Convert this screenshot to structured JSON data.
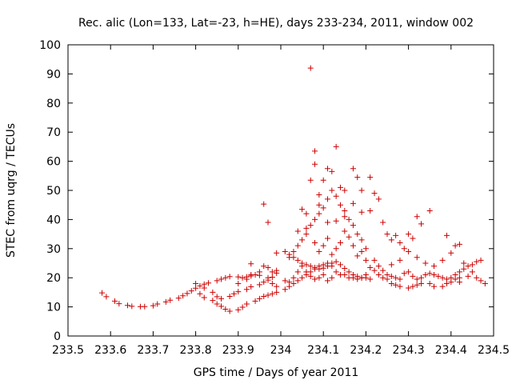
{
  "chart_data": {
    "type": "scatter",
    "title": "Rec. alic (Lon=133, Lat=-23, h=HE), days 233-234, 2011, window 002",
    "xlabel": "GPS time / Days of year 2011",
    "ylabel": "STEC from uqrg / TECUs",
    "xlim": [
      233.5,
      234.5
    ],
    "ylim": [
      0,
      100
    ],
    "x_ticks": [
      "233.5",
      "233.6",
      "233.7",
      "233.8",
      "233.9",
      "234",
      "234.1",
      "234.2",
      "234.3",
      "234.4",
      "234.5"
    ],
    "y_ticks": [
      "0",
      "10",
      "20",
      "30",
      "40",
      "50",
      "60",
      "70",
      "80",
      "90",
      "100"
    ],
    "grid": false,
    "legend": "none",
    "marker": "+",
    "color": "#cc0000",
    "points": [
      [
        233.58,
        14.8
      ],
      [
        233.59,
        13.5
      ],
      [
        233.61,
        12.0
      ],
      [
        233.62,
        11.1
      ],
      [
        233.64,
        10.5
      ],
      [
        233.65,
        10.2
      ],
      [
        233.67,
        10.1
      ],
      [
        233.68,
        10.1
      ],
      [
        233.7,
        10.4
      ],
      [
        233.71,
        11.0
      ],
      [
        233.73,
        11.7
      ],
      [
        233.74,
        12.3
      ],
      [
        233.76,
        13.0
      ],
      [
        233.77,
        13.8
      ],
      [
        233.78,
        14.6
      ],
      [
        233.79,
        15.5
      ],
      [
        233.8,
        16.4
      ],
      [
        233.81,
        17.2
      ],
      [
        233.82,
        17.8
      ],
      [
        233.83,
        18.2
      ],
      [
        233.85,
        19.0
      ],
      [
        233.86,
        19.5
      ],
      [
        233.87,
        20.0
      ],
      [
        233.88,
        20.4
      ],
      [
        233.9,
        20.3
      ],
      [
        233.91,
        20.0
      ],
      [
        233.92,
        20.3
      ],
      [
        233.93,
        20.6
      ],
      [
        233.94,
        21.0
      ],
      [
        233.95,
        20.8
      ],
      [
        233.97,
        20.0
      ],
      [
        233.98,
        20.2
      ],
      [
        233.99,
        21.6
      ],
      [
        233.81,
        14.5
      ],
      [
        233.82,
        13.2
      ],
      [
        233.84,
        12.2
      ],
      [
        233.85,
        11.0
      ],
      [
        233.86,
        10.2
      ],
      [
        233.87,
        9.2
      ],
      [
        233.88,
        8.5
      ],
      [
        233.9,
        9.0
      ],
      [
        233.91,
        9.9
      ],
      [
        233.92,
        11.0
      ],
      [
        233.94,
        12.0
      ],
      [
        233.95,
        12.8
      ],
      [
        233.96,
        13.6
      ],
      [
        233.97,
        14.0
      ],
      [
        233.98,
        14.5
      ],
      [
        233.8,
        18.0
      ],
      [
        233.82,
        16.5
      ],
      [
        233.84,
        15.0
      ],
      [
        233.85,
        13.5
      ],
      [
        233.86,
        12.8
      ],
      [
        233.88,
        13.6
      ],
      [
        233.89,
        14.5
      ],
      [
        233.9,
        15.2
      ],
      [
        233.92,
        16.0
      ],
      [
        233.93,
        16.9
      ],
      [
        233.95,
        17.6
      ],
      [
        233.96,
        18.5
      ],
      [
        233.97,
        19.2
      ],
      [
        233.98,
        18.0
      ],
      [
        233.99,
        17.0
      ],
      [
        233.9,
        18.0
      ],
      [
        233.92,
        19.5
      ],
      [
        233.93,
        21.0
      ],
      [
        233.95,
        22.0
      ],
      [
        233.96,
        24.0
      ],
      [
        233.97,
        23.5
      ],
      [
        233.98,
        22.0
      ],
      [
        233.93,
        24.8
      ],
      [
        233.96,
        45.3
      ],
      [
        233.97,
        39.0
      ],
      [
        233.99,
        28.5
      ],
      [
        233.99,
        22.5
      ],
      [
        233.99,
        15.0
      ],
      [
        234.01,
        29.0
      ],
      [
        234.02,
        28.0
      ],
      [
        234.03,
        27.0
      ],
      [
        234.04,
        26.0
      ],
      [
        234.05,
        25.0
      ],
      [
        234.06,
        24.5
      ],
      [
        234.07,
        24.0
      ],
      [
        234.08,
        23.5
      ],
      [
        234.09,
        23.0
      ],
      [
        234.1,
        23.3
      ],
      [
        234.11,
        24.0
      ],
      [
        234.12,
        25.0
      ],
      [
        234.13,
        25.5
      ],
      [
        234.14,
        24.5
      ],
      [
        234.15,
        23.2
      ],
      [
        234.16,
        22.0
      ],
      [
        234.17,
        21.0
      ],
      [
        234.18,
        20.5
      ],
      [
        234.19,
        20.0
      ],
      [
        234.2,
        20.0
      ],
      [
        234.21,
        19.5
      ],
      [
        234.01,
        16.0
      ],
      [
        234.02,
        17.0
      ],
      [
        234.03,
        18.0
      ],
      [
        234.04,
        19.0
      ],
      [
        234.05,
        20.0
      ],
      [
        234.06,
        21.0
      ],
      [
        234.07,
        22.0
      ],
      [
        234.08,
        23.0
      ],
      [
        234.09,
        24.0
      ],
      [
        234.1,
        24.5
      ],
      [
        234.11,
        25.0
      ],
      [
        234.12,
        24.0
      ],
      [
        234.13,
        22.0
      ],
      [
        234.14,
        21.0
      ],
      [
        234.15,
        21.0
      ],
      [
        234.16,
        20.0
      ],
      [
        234.17,
        20.0
      ],
      [
        234.18,
        19.5
      ],
      [
        234.19,
        20.0
      ],
      [
        234.2,
        21.0
      ],
      [
        234.01,
        19.0
      ],
      [
        234.02,
        18.5
      ],
      [
        234.03,
        20.0
      ],
      [
        234.04,
        22.0
      ],
      [
        234.05,
        24.0
      ],
      [
        234.06,
        22.0
      ],
      [
        234.07,
        20.5
      ],
      [
        234.08,
        19.5
      ],
      [
        234.09,
        20.0
      ],
      [
        234.1,
        21.0
      ],
      [
        234.11,
        19.0
      ],
      [
        234.12,
        20.0
      ],
      [
        234.02,
        27.0
      ],
      [
        234.03,
        29.0
      ],
      [
        234.04,
        31.0
      ],
      [
        234.05,
        33.0
      ],
      [
        234.06,
        35.0
      ],
      [
        234.07,
        38.0
      ],
      [
        234.08,
        40.0
      ],
      [
        234.09,
        42.0
      ],
      [
        234.1,
        44.0
      ],
      [
        234.11,
        47.0
      ],
      [
        234.12,
        50.0
      ],
      [
        234.13,
        48.0
      ],
      [
        234.14,
        45.0
      ],
      [
        234.15,
        43.0
      ],
      [
        234.16,
        40.0
      ],
      [
        234.17,
        38.0
      ],
      [
        234.18,
        35.0
      ],
      [
        234.19,
        33.0
      ],
      [
        234.2,
        30.0
      ],
      [
        234.05,
        43.5
      ],
      [
        234.06,
        42.0
      ],
      [
        234.07,
        53.5
      ],
      [
        234.08,
        59.0
      ],
      [
        234.08,
        63.5
      ],
      [
        234.09,
        48.5
      ],
      [
        234.1,
        53.5
      ],
      [
        234.11,
        57.5
      ],
      [
        234.12,
        56.5
      ],
      [
        234.13,
        65.0
      ],
      [
        234.14,
        51.0
      ],
      [
        234.15,
        50.0
      ],
      [
        234.17,
        57.5
      ],
      [
        234.18,
        54.5
      ],
      [
        234.19,
        50.0
      ],
      [
        234.21,
        54.5
      ],
      [
        234.22,
        49.0
      ],
      [
        234.23,
        47.0
      ],
      [
        234.07,
        92.0
      ],
      [
        234.09,
        45.0
      ],
      [
        234.11,
        39.0
      ],
      [
        234.13,
        39.5
      ],
      [
        234.15,
        41.0
      ],
      [
        234.17,
        45.5
      ],
      [
        234.19,
        42.5
      ],
      [
        234.21,
        43.0
      ],
      [
        234.04,
        36.0
      ],
      [
        234.06,
        37.0
      ],
      [
        234.08,
        32.0
      ],
      [
        234.09,
        29.0
      ],
      [
        234.1,
        31.0
      ],
      [
        234.11,
        33.5
      ],
      [
        234.12,
        28.0
      ],
      [
        234.13,
        30.0
      ],
      [
        234.14,
        32.0
      ],
      [
        234.15,
        36.0
      ],
      [
        234.16,
        34.0
      ],
      [
        234.17,
        31.0
      ],
      [
        234.18,
        27.5
      ],
      [
        234.19,
        29.0
      ],
      [
        234.2,
        26.0
      ],
      [
        234.21,
        23.5
      ],
      [
        234.22,
        22.5
      ],
      [
        234.23,
        21.0
      ],
      [
        234.24,
        20.0
      ],
      [
        234.25,
        19.5
      ],
      [
        234.26,
        18.0
      ],
      [
        234.27,
        17.5
      ],
      [
        234.28,
        17.0
      ],
      [
        234.3,
        16.5
      ],
      [
        234.31,
        17.0
      ],
      [
        234.32,
        17.5
      ],
      [
        234.33,
        18.0
      ],
      [
        234.35,
        18.0
      ],
      [
        234.36,
        17.0
      ],
      [
        234.38,
        17.0
      ],
      [
        234.39,
        18.0
      ],
      [
        234.4,
        18.5
      ],
      [
        234.41,
        19.5
      ],
      [
        234.42,
        20.0
      ],
      [
        234.22,
        26.0
      ],
      [
        234.23,
        24.0
      ],
      [
        234.24,
        22.5
      ],
      [
        234.25,
        21.0
      ],
      [
        234.26,
        20.5
      ],
      [
        234.27,
        20.0
      ],
      [
        234.28,
        19.5
      ],
      [
        234.29,
        21.5
      ],
      [
        234.3,
        22.0
      ],
      [
        234.31,
        20.5
      ],
      [
        234.32,
        19.5
      ],
      [
        234.33,
        20.0
      ],
      [
        234.34,
        21.0
      ],
      [
        234.35,
        21.5
      ],
      [
        234.36,
        21.0
      ],
      [
        234.37,
        20.5
      ],
      [
        234.38,
        20.0
      ],
      [
        234.39,
        19.5
      ],
      [
        234.4,
        20.0
      ],
      [
        234.41,
        21.0
      ],
      [
        234.42,
        22.0
      ],
      [
        234.43,
        23.0
      ],
      [
        234.44,
        24.0
      ],
      [
        234.45,
        24.5
      ],
      [
        234.46,
        25.5
      ],
      [
        234.47,
        26.0
      ],
      [
        234.24,
        39.0
      ],
      [
        234.25,
        35.0
      ],
      [
        234.26,
        33.0
      ],
      [
        234.27,
        34.5
      ],
      [
        234.28,
        32.0
      ],
      [
        234.29,
        30.0
      ],
      [
        234.3,
        35.0
      ],
      [
        234.31,
        33.5
      ],
      [
        234.32,
        41.0
      ],
      [
        234.33,
        38.5
      ],
      [
        234.35,
        43.0
      ],
      [
        234.39,
        34.5
      ],
      [
        234.41,
        31.0
      ],
      [
        234.42,
        31.5
      ],
      [
        234.4,
        28.5
      ],
      [
        234.38,
        26.0
      ],
      [
        234.36,
        24.0
      ],
      [
        234.34,
        25.0
      ],
      [
        234.32,
        27.0
      ],
      [
        234.3,
        29.0
      ],
      [
        234.28,
        26.0
      ],
      [
        234.26,
        24.5
      ],
      [
        234.42,
        18.5
      ],
      [
        234.44,
        20.5
      ],
      [
        234.45,
        22.0
      ],
      [
        234.46,
        20.0
      ],
      [
        234.47,
        19.0
      ],
      [
        234.48,
        18.0
      ],
      [
        234.43,
        25.0
      ]
    ]
  }
}
